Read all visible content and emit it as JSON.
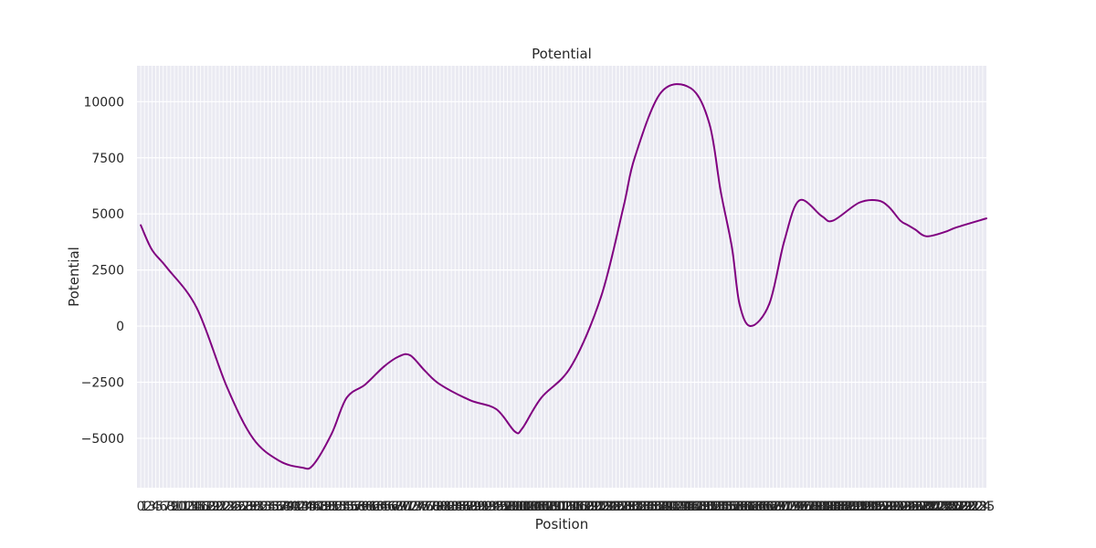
{
  "chart_data": {
    "type": "line",
    "title": "Potential",
    "xlabel": "Position",
    "ylabel": "Potential",
    "xlim": [
      -1,
      226
    ],
    "ylim": [
      -7200,
      11600
    ],
    "yticks": [
      -5000,
      -2500,
      0,
      2500,
      5000,
      7500,
      10000
    ],
    "ytick_labels": [
      "−5000",
      "−2500",
      "0",
      "2500",
      "5000",
      "7500",
      "10000"
    ],
    "x_tick_count": 226,
    "x_tick_label_note": "Dense overlapping integer labels 0..225 (illegible in image)",
    "grid": true,
    "background": "#eaeaf2",
    "series": [
      {
        "name": "Potential",
        "color": "#800080",
        "x": [
          0,
          3,
          7,
          15,
          23,
          30,
          37,
          43,
          46,
          51,
          55,
          60,
          65,
          69,
          72,
          76,
          80,
          88,
          95,
          100,
          102,
          107,
          115,
          123,
          129,
          132,
          139,
          147,
          152,
          155,
          158,
          160,
          163,
          168,
          172,
          176,
          182,
          185,
          192,
          197,
          200,
          203,
          205,
          207,
          210,
          215,
          218,
          226
        ],
        "values": [
          4500,
          3400,
          2600,
          800,
          -2700,
          -5000,
          -6000,
          -6300,
          -6200,
          -4800,
          -3200,
          -2600,
          -1800,
          -1350,
          -1300,
          -2000,
          -2600,
          -3300,
          -3700,
          -4700,
          -4550,
          -3200,
          -1800,
          1300,
          5300,
          7500,
          10400,
          10600,
          9000,
          6000,
          3500,
          1000,
          0,
          1000,
          3800,
          5600,
          4900,
          4700,
          5500,
          5600,
          5300,
          4700,
          4500,
          4300,
          4000,
          4200,
          4400,
          4800
        ]
      }
    ]
  }
}
